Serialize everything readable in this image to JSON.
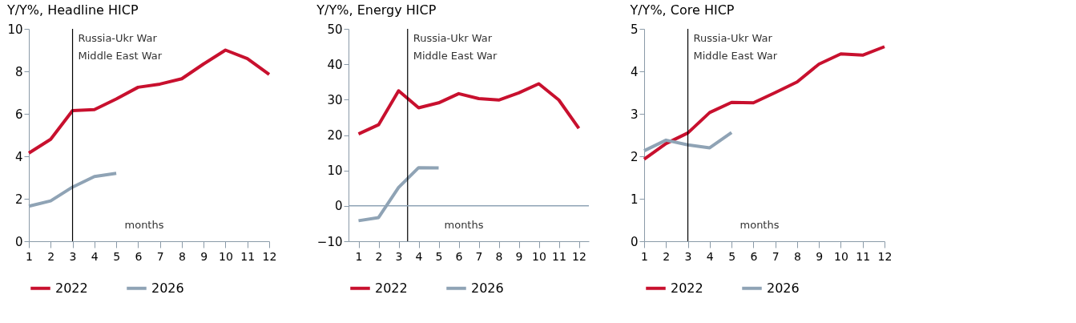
{
  "chart_data": [
    {
      "type": "line",
      "title": "Y/Y%, Headline HICP",
      "x": [
        1,
        2,
        3,
        4,
        5,
        6,
        7,
        8,
        9,
        10,
        11,
        12
      ],
      "xlim": [
        1,
        12
      ],
      "xticks": [
        1,
        2,
        3,
        4,
        5,
        6,
        7,
        8,
        9,
        10,
        11,
        12
      ],
      "ylim": [
        0,
        10
      ],
      "yticks": [
        0,
        2,
        4,
        6,
        8,
        10
      ],
      "grid": false,
      "legend": "bottom",
      "marker": "none",
      "line_style": "solid",
      "series": [
        {
          "name": "2022",
          "color": "#c8102e",
          "values": [
            4.15,
            4.8,
            6.15,
            6.2,
            6.7,
            7.25,
            7.4,
            7.65,
            8.35,
            9.0,
            8.6,
            7.85
          ]
        },
        {
          "name": "2026",
          "color": "#8fa3b5",
          "values": [
            1.65,
            1.9,
            2.55,
            3.05,
            3.2,
            null,
            null,
            null,
            null,
            null,
            null,
            null
          ]
        }
      ],
      "ref_lines": [
        {
          "axis": "x",
          "value": 3,
          "label": "Russia-Ukr War\nMiddle East War",
          "color": "#000000"
        }
      ],
      "annotations": [
        "months"
      ]
    },
    {
      "type": "line",
      "title": "Y/Y%, Energy HICP",
      "x": [
        1,
        2,
        3,
        4,
        5,
        6,
        7,
        8,
        9,
        10,
        11,
        12
      ],
      "xlim": [
        0.5,
        12.5
      ],
      "xticks": [
        1,
        2,
        3,
        4,
        5,
        6,
        7,
        8,
        9,
        10,
        11,
        12
      ],
      "ylim": [
        -10,
        50
      ],
      "yticks": [
        -10,
        0,
        10,
        20,
        30,
        40,
        50
      ],
      "grid": false,
      "legend": "bottom",
      "marker": "none",
      "line_style": "solid",
      "series": [
        {
          "name": "2022",
          "color": "#c8102e",
          "values": [
            20.3,
            22.9,
            32.5,
            27.7,
            29.1,
            31.7,
            30.3,
            29.9,
            31.9,
            34.5,
            29.9,
            21.9
          ]
        },
        {
          "name": "2026",
          "color": "#8fa3b5",
          "values": [
            -4.2,
            -3.3,
            5.2,
            10.8,
            10.7,
            null,
            null,
            null,
            null,
            null,
            null,
            null
          ]
        }
      ],
      "ref_lines": [
        {
          "axis": "x",
          "value": 3.45,
          "label": "Russia-Ukr War\nMiddle East War",
          "color": "#000000"
        },
        {
          "axis": "y",
          "value": 0,
          "label": null,
          "color": "#8fa3b5"
        }
      ],
      "annotations": [
        "months"
      ]
    },
    {
      "type": "line",
      "title": "Y/Y%, Core HICP",
      "x": [
        1,
        2,
        3,
        4,
        5,
        6,
        7,
        8,
        9,
        10,
        11,
        12
      ],
      "xlim": [
        1,
        12
      ],
      "xticks": [
        1,
        2,
        3,
        4,
        5,
        6,
        7,
        8,
        9,
        10,
        11,
        12
      ],
      "ylim": [
        0,
        5
      ],
      "yticks": [
        0,
        1,
        2,
        3,
        4,
        5
      ],
      "grid": false,
      "legend": "bottom",
      "marker": "none",
      "line_style": "solid",
      "series": [
        {
          "name": "2022",
          "color": "#c8102e",
          "values": [
            1.93,
            2.3,
            2.55,
            3.03,
            3.27,
            3.26,
            3.5,
            3.75,
            4.17,
            4.41,
            4.38,
            4.58
          ]
        },
        {
          "name": "2026",
          "color": "#8fa3b5",
          "values": [
            2.13,
            2.38,
            2.27,
            2.2,
            2.56,
            null,
            null,
            null,
            null,
            null,
            null,
            null
          ]
        }
      ],
      "ref_lines": [
        {
          "axis": "x",
          "value": 3,
          "label": "Russia-Ukr War\nMiddle East War",
          "color": "#000000"
        }
      ],
      "annotations": [
        "months"
      ]
    }
  ]
}
